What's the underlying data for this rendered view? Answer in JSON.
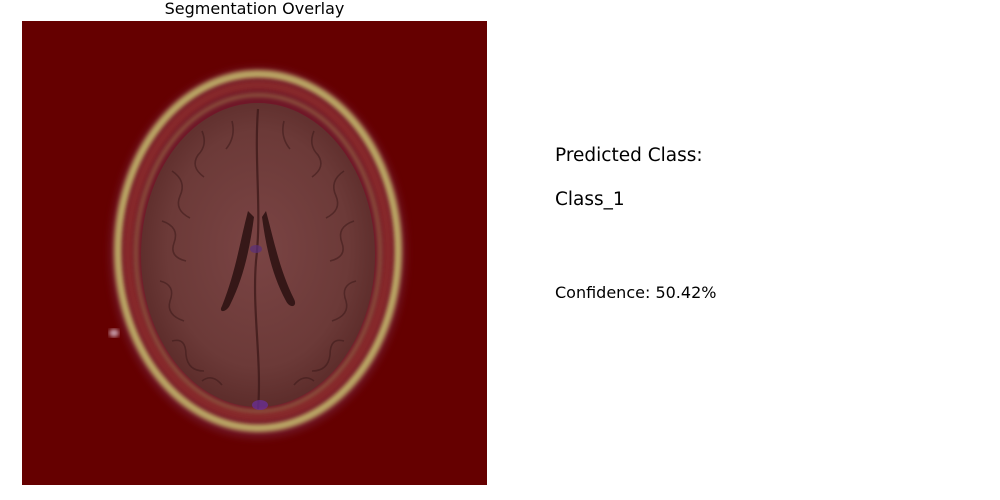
{
  "figure": {
    "title": "Segmentation Overlay"
  },
  "result": {
    "predicted_class_label": "Predicted Class:",
    "predicted_class_value": "Class_1",
    "confidence_text": "Confidence: 50.42%"
  },
  "colors": {
    "overlay_background": "#650000",
    "brain_tissue": "#6e3a38",
    "skull_highlight": "#c8c070",
    "ventricle_accent": "#5a2f7a"
  }
}
